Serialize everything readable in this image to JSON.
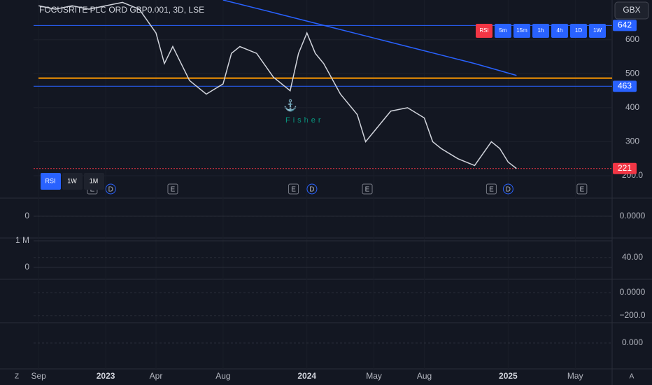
{
  "chart_data": {
    "type": "line",
    "title": "FOCUSRITE PLC ORD GBP0.001, 3D, LSE",
    "currency": "GBX",
    "annotation": "Fisher",
    "buttons": [
      "RSI",
      "5m",
      "15m",
      "1h",
      "4h",
      "1D",
      "1W"
    ],
    "range_buttons": [
      "RSI",
      "1W",
      "1M"
    ],
    "events": [
      {
        "x": 3.2,
        "label": "E"
      },
      {
        "x": 4.3,
        "label": "D"
      },
      {
        "x": 8,
        "label": "E"
      },
      {
        "x": 15.2,
        "label": "E"
      },
      {
        "x": 16.3,
        "label": "D"
      },
      {
        "x": 19.6,
        "label": "E"
      },
      {
        "x": 27,
        "label": "E"
      },
      {
        "x": 28,
        "label": "D"
      },
      {
        "x": 32.4,
        "label": "E"
      }
    ],
    "corner_labels": [
      "Z",
      "A"
    ],
    "xlim": [
      -0.3,
      34.2
    ],
    "xticks": [
      {
        "value": 0,
        "label": "Sep"
      },
      {
        "value": 4,
        "label": "2023"
      },
      {
        "value": 7,
        "label": "Apr"
      },
      {
        "value": 11,
        "label": "Aug"
      },
      {
        "value": 16,
        "label": "2024"
      },
      {
        "value": 20,
        "label": "May"
      },
      {
        "value": 23,
        "label": "Aug"
      },
      {
        "value": 28,
        "label": "2025"
      },
      {
        "value": 32,
        "label": "May"
      }
    ],
    "ylim": [
      134,
      717
    ],
    "yticks": [
      {
        "value": 200,
        "label": "200.0"
      },
      300,
      400,
      500,
      600
    ],
    "series": [
      {
        "color": "#d1d4dc",
        "x": [
          0,
          1,
          2,
          3,
          4,
          5,
          6,
          7,
          7.5,
          8,
          9,
          10,
          11,
          11.5,
          12,
          13,
          14,
          15,
          15.5,
          16,
          16.5,
          17,
          18,
          19,
          19.5,
          20,
          21,
          22,
          23,
          23.5,
          24,
          25,
          26,
          27,
          27.5,
          28,
          28.5
        ],
        "values": [
          700,
          690,
          700,
          690,
          700,
          710,
          690,
          620,
          530,
          580,
          480,
          440,
          470,
          560,
          580,
          560,
          490,
          450,
          560,
          620,
          560,
          530,
          440,
          380,
          300,
          330,
          390,
          400,
          370,
          300,
          280,
          250,
          230,
          300,
          280,
          240,
          221
        ]
      },
      {
        "color": "#2962ff",
        "x": [
          11,
          14,
          18,
          22,
          26,
          28.5
        ],
        "values": [
          717,
          680,
          630,
          580,
          530,
          495
        ]
      }
    ],
    "levels": [
      {
        "value": 642,
        "color": "#2962ff"
      },
      {
        "value": 463,
        "color": "#2962ff"
      },
      {
        "value": 221,
        "color": "#f23645"
      }
    ],
    "hlines": [
      {
        "value": 487,
        "color": "#ff9800"
      }
    ],
    "panels": [
      {
        "ylim": [
          -1.13,
          0.87
        ],
        "yticks": [
          {
            "value": 0,
            "label": "0.0000"
          }
        ],
        "left_ticks": [
          0
        ]
      },
      {
        "ylim": [
          -420000,
          1080000
        ],
        "left_ticks": [
          0,
          {
            "value": 1000000,
            "label": "1 M"
          }
        ],
        "y2lim": [
          -20,
          93
        ],
        "yticks": [
          {
            "value": 40,
            "label": "40.00"
          }
        ]
      },
      {
        "ylim": [
          -255,
          109
        ],
        "yticks": [
          {
            "value": 0,
            "label": "0.0000"
          },
          {
            "value": -200,
            "label": "−200.0"
          }
        ]
      },
      {
        "ylim": [
          -1.14,
          0.86
        ],
        "yticks": [
          {
            "value": 0,
            "label": "0.000"
          }
        ]
      }
    ]
  }
}
